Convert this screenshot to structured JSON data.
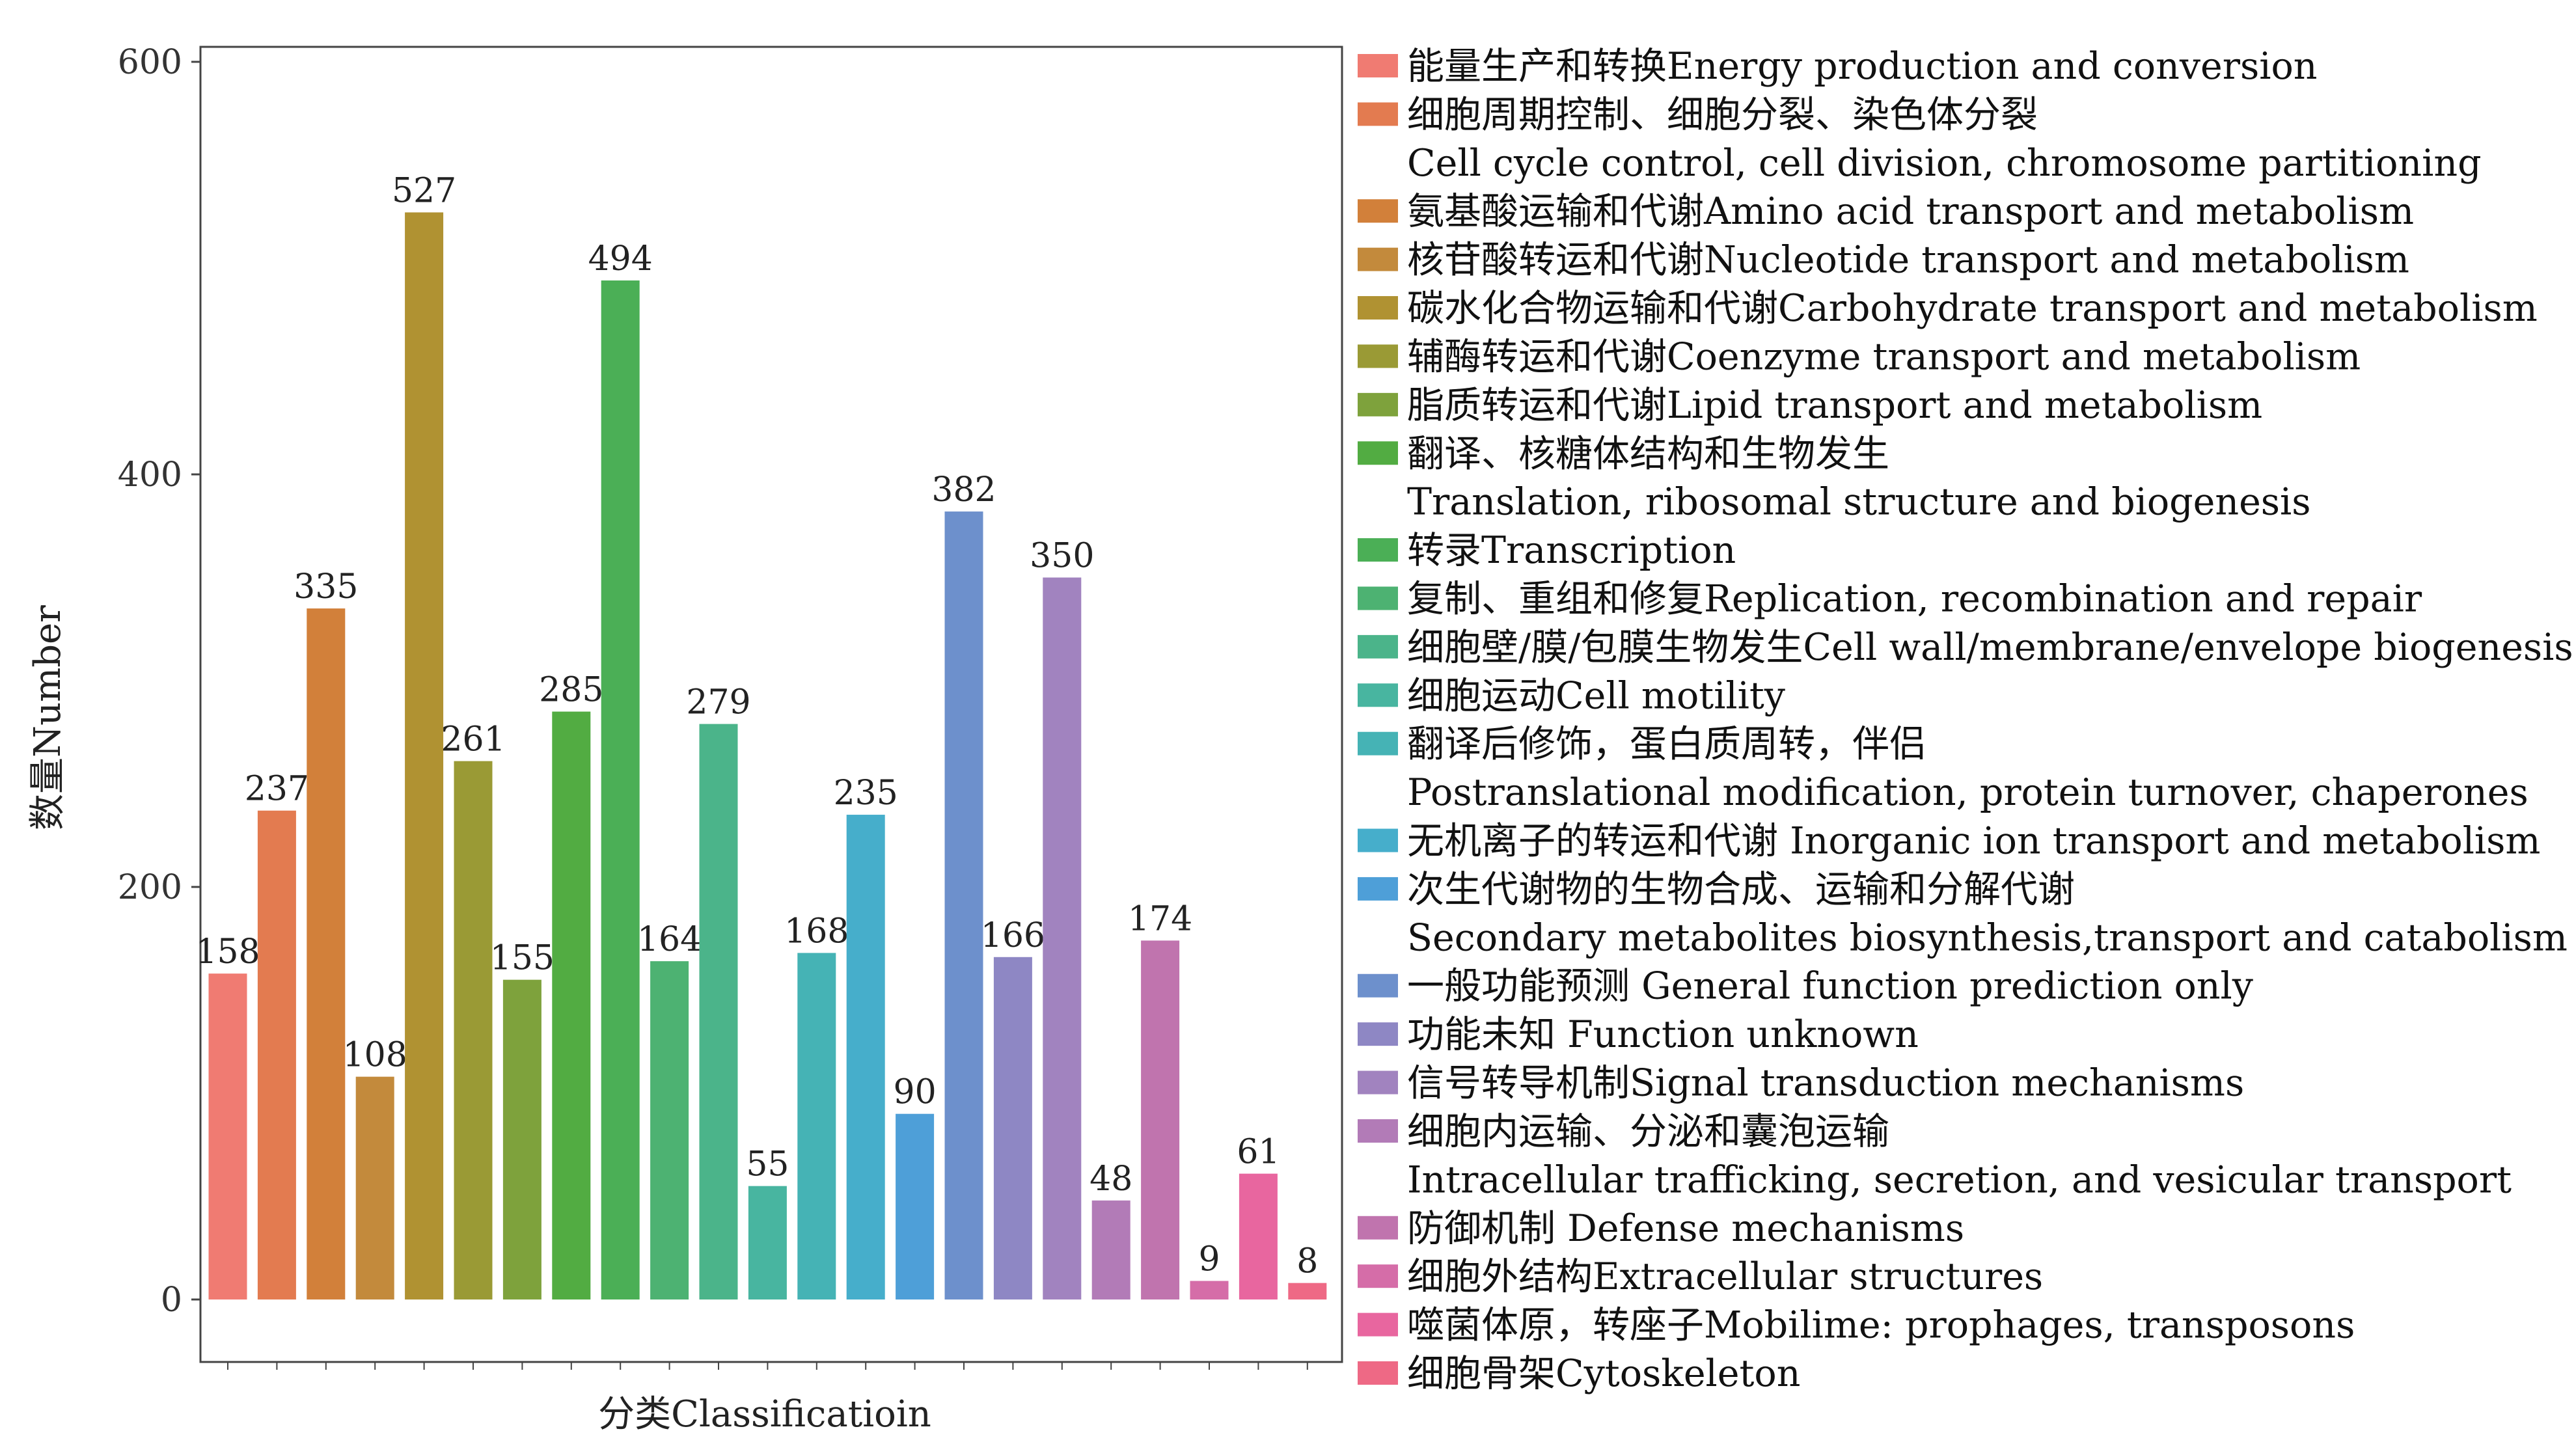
{
  "chart_data": {
    "type": "bar",
    "xlabel": "分类Classificatioin",
    "ylabel": "数量Number",
    "ylim": [
      0,
      600
    ],
    "yticks": [
      "0",
      "200",
      "400",
      "600"
    ],
    "grid": false,
    "legend_position": "right",
    "categories": [
      {
        "lines": [
          "能量生产和转换Energy production and conversion"
        ],
        "value": 158,
        "color": "#F07B72"
      },
      {
        "lines": [
          "细胞周期控制、细胞分裂、染色体分裂",
          "Cell cycle control, cell division, chromosome partitioning"
        ],
        "value": 237,
        "color": "#E37B50"
      },
      {
        "lines": [
          "氨基酸运输和代谢Amino acid transport and metabolism"
        ],
        "value": 335,
        "color": "#D2803A"
      },
      {
        "lines": [
          "核苷酸转运和代谢Nucleotide transport and metabolism"
        ],
        "value": 108,
        "color": "#C38A3C"
      },
      {
        "lines": [
          "碳水化合物运输和代谢Carbohydrate transport and metabolism"
        ],
        "value": 527,
        "color": "#B09232"
      },
      {
        "lines": [
          "辅酶转运和代谢Coenzyme transport and metabolism"
        ],
        "value": 261,
        "color": "#9A9A35"
      },
      {
        "lines": [
          "脂质转运和代谢Lipid transport and metabolism"
        ],
        "value": 155,
        "color": "#7EA23C"
      },
      {
        "lines": [
          "翻译、核糖体结构和生物发生",
          "Translation, ribosomal structure and biogenesis"
        ],
        "value": 285,
        "color": "#52AC42"
      },
      {
        "lines": [
          "转录Transcription"
        ],
        "value": 494,
        "color": "#4BAF56"
      },
      {
        "lines": [
          "复制、重组和修复Replication, recombination and repair"
        ],
        "value": 164,
        "color": "#4DB272"
      },
      {
        "lines": [
          "细胞壁/膜/包膜生物发生Cell wall/membrane/envelope biogenesis"
        ],
        "value": 279,
        "color": "#4BB48A"
      },
      {
        "lines": [
          "细胞运动Cell motility"
        ],
        "value": 55,
        "color": "#48B5A0"
      },
      {
        "lines": [
          "翻译后修饰，蛋白质周转，伴侣",
          "Postranslational modification, protein turnover, chaperones"
        ],
        "value": 168,
        "color": "#45B3B5"
      },
      {
        "lines": [
          "无机离子的转运和代谢 Inorganic ion transport and metabolism"
        ],
        "value": 235,
        "color": "#46AECB"
      },
      {
        "lines": [
          "次生代谢物的生物合成、运输和分解代谢",
          "Secondary metabolites biosynthesis,transport and catabolism"
        ],
        "value": 90,
        "color": "#4E9FD8"
      },
      {
        "lines": [
          "一般功能预测 General function prediction only"
        ],
        "value": 382,
        "color": "#6D90CC"
      },
      {
        "lines": [
          "功能未知 Function unknown"
        ],
        "value": 166,
        "color": "#8E87C4"
      },
      {
        "lines": [
          "信号转导机制Signal transduction mechanisms"
        ],
        "value": 350,
        "color": "#A183BF"
      },
      {
        "lines": [
          "细胞内运输、分泌和囊泡运输",
          "Intracellular trafficking, secretion, and vesicular transport"
        ],
        "value": 48,
        "color": "#B27BB7"
      },
      {
        "lines": [
          "防御机制 Defense mechanisms"
        ],
        "value": 174,
        "color": "#C074AE"
      },
      {
        "lines": [
          "细胞外结构Extracellular structures"
        ],
        "value": 9,
        "color": "#D56DA8"
      },
      {
        "lines": [
          "噬菌体原，转座子Mobilime: prophages, transposons"
        ],
        "value": 61,
        "color": "#E8669F"
      },
      {
        "lines": [
          "细胞骨架Cytoskeleton"
        ],
        "value": 8,
        "color": "#EE6985"
      }
    ]
  }
}
